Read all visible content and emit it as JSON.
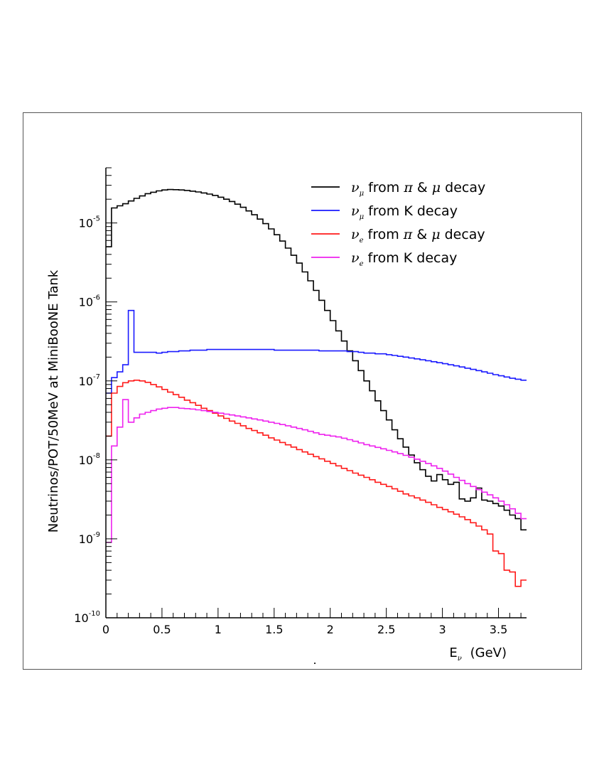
{
  "chart_data": {
    "type": "line",
    "style": "step-histogram",
    "title": "",
    "xlabel": {
      "main": "E",
      "sub": "ν",
      "unit": "(GeV)"
    },
    "ylabel": "Neutrinos/POT/50MeV at MiniBooNE Tank",
    "xlim": [
      0,
      3.75
    ],
    "ylim": [
      1e-10,
      5e-05
    ],
    "yscale": "log",
    "bin_width": 0.05,
    "x_ticks": [
      "0",
      "0.5",
      "1",
      "1.5",
      "2",
      "2.5",
      "3",
      "3.5"
    ],
    "x_tick_values": [
      0,
      0.5,
      1,
      1.5,
      2,
      2.5,
      3,
      3.5
    ],
    "y_ticks": [
      {
        "value": 1e-10,
        "base": "10",
        "exp": "-10"
      },
      {
        "value": 1e-09,
        "base": "10",
        "exp": "-9"
      },
      {
        "value": 1e-08,
        "base": "10",
        "exp": "-8"
      },
      {
        "value": 1e-07,
        "base": "10",
        "exp": "-7"
      },
      {
        "value": 1e-06,
        "base": "10",
        "exp": "-6"
      },
      {
        "value": 1e-05,
        "base": "10",
        "exp": "-5"
      }
    ],
    "legend_position": "top-right",
    "series": [
      {
        "name": "ν_μ from π & μ decay",
        "legend": {
          "nu": "ν",
          "flavor": "μ",
          "text": " from ",
          "parent1": "π",
          "amp": " & ",
          "parent2": "μ",
          "tail": " decay"
        },
        "color": "#000000",
        "values": [
          5e-06,
          1.55e-05,
          1.65e-05,
          1.75e-05,
          1.9e-05,
          2.05e-05,
          2.2e-05,
          2.35e-05,
          2.45e-05,
          2.55e-05,
          2.62e-05,
          2.65e-05,
          2.64e-05,
          2.62e-05,
          2.58e-05,
          2.53e-05,
          2.47e-05,
          2.4e-05,
          2.32e-05,
          2.23e-05,
          2.12e-05,
          2e-05,
          1.87e-05,
          1.73e-05,
          1.58e-05,
          1.42e-05,
          1.27e-05,
          1.12e-05,
          9.8e-06,
          8.4e-06,
          7.1e-06,
          5.9e-06,
          4.8e-06,
          3.9e-06,
          3.1e-06,
          2.4e-06,
          1.85e-06,
          1.4e-06,
          1.05e-06,
          7.8e-07,
          5.8e-07,
          4.3e-07,
          3.2e-07,
          2.4e-07,
          1.8e-07,
          1.35e-07,
          1e-07,
          7.5e-08,
          5.6e-08,
          4.2e-08,
          3.2e-08,
          2.4e-08,
          1.85e-08,
          1.45e-08,
          1.15e-08,
          9.2e-09,
          7.5e-09,
          6.2e-09,
          5.4e-09,
          6.5e-09,
          5.6e-09,
          4.9e-09,
          5.2e-09,
          3.2e-09,
          3e-09,
          3.3e-09,
          4.4e-09,
          3.1e-09,
          3e-09,
          2.8e-09,
          2.6e-09,
          2.3e-09,
          2e-09,
          1.8e-09,
          1.3e-09
        ]
      },
      {
        "name": "ν_μ from K decay",
        "legend": {
          "nu": "ν",
          "flavor": "μ",
          "text": " from K decay"
        },
        "color": "#1a1aff",
        "values": [
          7e-08,
          1.1e-07,
          1.3e-07,
          1.6e-07,
          7.8e-07,
          2.3e-07,
          2.3e-07,
          2.3e-07,
          2.3e-07,
          2.25e-07,
          2.3e-07,
          2.35e-07,
          2.35e-07,
          2.4e-07,
          2.4e-07,
          2.45e-07,
          2.45e-07,
          2.45e-07,
          2.5e-07,
          2.5e-07,
          2.5e-07,
          2.5e-07,
          2.5e-07,
          2.5e-07,
          2.5e-07,
          2.5e-07,
          2.5e-07,
          2.5e-07,
          2.5e-07,
          2.5e-07,
          2.45e-07,
          2.45e-07,
          2.45e-07,
          2.45e-07,
          2.45e-07,
          2.45e-07,
          2.45e-07,
          2.45e-07,
          2.4e-07,
          2.4e-07,
          2.4e-07,
          2.4e-07,
          2.4e-07,
          2.35e-07,
          2.35e-07,
          2.3e-07,
          2.25e-07,
          2.25e-07,
          2.2e-07,
          2.2e-07,
          2.15e-07,
          2.1e-07,
          2.05e-07,
          2e-07,
          1.95e-07,
          1.9e-07,
          1.85e-07,
          1.8e-07,
          1.75e-07,
          1.7e-07,
          1.65e-07,
          1.6e-07,
          1.55e-07,
          1.5e-07,
          1.45e-07,
          1.4e-07,
          1.35e-07,
          1.3e-07,
          1.25e-07,
          1.2e-07,
          1.16e-07,
          1.12e-07,
          1.08e-07,
          1.05e-07,
          1.02e-07
        ]
      },
      {
        "name": "ν_e from π & μ decay",
        "legend": {
          "nu": "ν",
          "flavor": "e",
          "text": " from ",
          "parent1": "π",
          "amp": " & ",
          "parent2": "μ",
          "tail": " decay"
        },
        "color": "#ff1a1a",
        "values": [
          2e-08,
          7e-08,
          8.5e-08,
          9.5e-08,
          1e-07,
          1.02e-07,
          1e-07,
          9.6e-08,
          9e-08,
          8.4e-08,
          7.8e-08,
          7.2e-08,
          6.7e-08,
          6.2e-08,
          5.7e-08,
          5.3e-08,
          4.9e-08,
          4.5e-08,
          4.2e-08,
          3.9e-08,
          3.6e-08,
          3.35e-08,
          3.1e-08,
          2.9e-08,
          2.7e-08,
          2.5e-08,
          2.35e-08,
          2.2e-08,
          2.05e-08,
          1.9e-08,
          1.78e-08,
          1.66e-08,
          1.55e-08,
          1.45e-08,
          1.35e-08,
          1.26e-08,
          1.18e-08,
          1.1e-08,
          1.03e-08,
          9.6e-09,
          9e-09,
          8.4e-09,
          7.8e-09,
          7.3e-09,
          6.8e-09,
          6.4e-09,
          6e-09,
          5.6e-09,
          5.2e-09,
          4.9e-09,
          4.6e-09,
          4.3e-09,
          4e-09,
          3.7e-09,
          3.5e-09,
          3.3e-09,
          3.1e-09,
          2.9e-09,
          2.7e-09,
          2.5e-09,
          2.35e-09,
          2.2e-09,
          2.05e-09,
          1.9e-09,
          1.75e-09,
          1.6e-09,
          1.45e-09,
          1.3e-09,
          1.15e-09,
          7e-10,
          6.5e-10,
          4e-10,
          3.8e-10,
          2.5e-10,
          3e-10
        ]
      },
      {
        "name": "ν_e from K decay",
        "legend": {
          "nu": "ν",
          "flavor": "e",
          "text": " from K decay"
        },
        "color": "#ee22ee",
        "values": [
          9e-10,
          1.5e-08,
          2.6e-08,
          5.8e-08,
          3e-08,
          3.4e-08,
          3.8e-08,
          4e-08,
          4.2e-08,
          4.4e-08,
          4.5e-08,
          4.6e-08,
          4.6e-08,
          4.5e-08,
          4.45e-08,
          4.4e-08,
          4.3e-08,
          4.2e-08,
          4.1e-08,
          4e-08,
          3.9e-08,
          3.8e-08,
          3.7e-08,
          3.6e-08,
          3.5e-08,
          3.4e-08,
          3.3e-08,
          3.2e-08,
          3.1e-08,
          3e-08,
          2.9e-08,
          2.8e-08,
          2.7e-08,
          2.6e-08,
          2.5e-08,
          2.4e-08,
          2.3e-08,
          2.2e-08,
          2.1e-08,
          2.05e-08,
          2e-08,
          1.95e-08,
          1.88e-08,
          1.8e-08,
          1.72e-08,
          1.64e-08,
          1.56e-08,
          1.5e-08,
          1.44e-08,
          1.38e-08,
          1.32e-08,
          1.26e-08,
          1.2e-08,
          1.14e-08,
          1.08e-08,
          1.02e-08,
          9.6e-09,
          9e-09,
          8.4e-09,
          7.8e-09,
          7.2e-09,
          6.6e-09,
          6e-09,
          5.5e-09,
          5e-09,
          4.6e-09,
          4.2e-09,
          3.9e-09,
          3.6e-09,
          3.3e-09,
          3e-09,
          2.7e-09,
          2.4e-09,
          2.1e-09,
          1.8e-09
        ]
      }
    ],
    "footnote": "."
  }
}
